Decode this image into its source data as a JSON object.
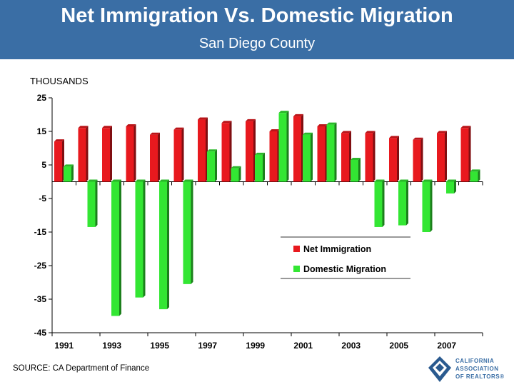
{
  "header": {
    "title": "Net Immigration Vs. Domestic Migration",
    "subtitle": "San Diego County"
  },
  "units_label": "THOUSANDS",
  "source": "SOURCE: CA Department of Finance",
  "logo": {
    "lines": [
      "CALIFORNIA",
      "ASSOCIATION",
      "OF REALTORS®"
    ]
  },
  "colors": {
    "header_bg": "#3a6ea5",
    "net_immigration": "#e8191e",
    "domestic_migration": "#33e633"
  },
  "chart_data": {
    "type": "bar",
    "title": "Net Immigration Vs. Domestic Migration",
    "subtitle": "San Diego County",
    "ylabel": "THOUSANDS",
    "xlabel": "",
    "categories": [
      "1991",
      "1992",
      "1993",
      "1994",
      "1995",
      "1996",
      "1997",
      "1998",
      "1999",
      "2000",
      "2001",
      "2002",
      "2003",
      "2004",
      "2005",
      "2006",
      "2007",
      "2008"
    ],
    "x_tick_labels": [
      "1991",
      "1993",
      "1995",
      "1997",
      "1999",
      "2001",
      "2003",
      "2005",
      "2007"
    ],
    "y_ticks": [
      25,
      15,
      5,
      -5,
      -15,
      -25,
      -35,
      -45
    ],
    "ylim": [
      -45,
      25
    ],
    "series": [
      {
        "name": "Net Immigration",
        "values": [
          12,
          16,
          16,
          16.5,
          14,
          15.5,
          18.5,
          17.5,
          18,
          15,
          19.5,
          16.5,
          14.5,
          14.5,
          13,
          12.5,
          14.5,
          16
        ]
      },
      {
        "name": "Domestic Migration",
        "values": [
          4.5,
          -13.5,
          -40,
          -34.5,
          -38,
          -30.5,
          9,
          4,
          8,
          20.5,
          14,
          17,
          6.5,
          -13.5,
          -13,
          -15,
          -3.5,
          3
        ]
      }
    ],
    "legend": "center-right",
    "grid": false
  }
}
